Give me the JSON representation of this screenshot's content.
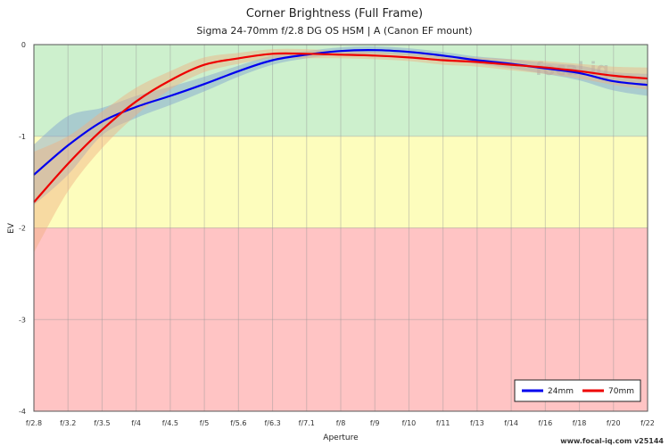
{
  "chart_data": {
    "type": "line",
    "title": "Corner Brightness (Full Frame)",
    "subtitle": "Sigma 24-70mm f/2.8 DG OS HSM | A (Canon EF mount)",
    "xlabel": "Aperture",
    "ylabel": "EV",
    "credit": "www.focal-iq.com  v25144",
    "watermark": "focal iq",
    "categories": [
      "f/2.8",
      "f/3.2",
      "f/3.5",
      "f/4",
      "f/4.5",
      "f/5",
      "f/5.6",
      "f/6.3",
      "f/7.1",
      "f/8",
      "f/9",
      "f/10",
      "f/11",
      "f/13",
      "f/14",
      "f/16",
      "f/18",
      "f/20",
      "f/22"
    ],
    "y_ticks": [
      {
        "value": 0,
        "label": "0"
      },
      {
        "value": -1,
        "label": "-1"
      },
      {
        "value": -2,
        "label": "-2"
      },
      {
        "value": -3,
        "label": "-3"
      },
      {
        "value": -4,
        "label": "-4"
      }
    ],
    "ylim": [
      -4,
      0
    ],
    "grid": true,
    "legend_position": "bottom-right",
    "zones": [
      {
        "from": 0,
        "to": -1,
        "color": "#cdf0cd"
      },
      {
        "from": -1,
        "to": -2,
        "color": "#fdfdbd"
      },
      {
        "from": -2,
        "to": -4,
        "color": "#ffc4c4"
      }
    ],
    "series": [
      {
        "name": "24mm",
        "color": "#0000ee",
        "band_color": "#7f9fd0",
        "x": [
          0,
          1,
          2,
          3,
          4,
          5,
          6,
          7,
          8,
          9,
          10,
          11,
          12,
          13,
          14,
          15,
          16,
          17,
          18
        ],
        "values": [
          -1.42,
          -1.1,
          -0.84,
          -0.68,
          -0.56,
          -0.43,
          -0.29,
          -0.17,
          -0.11,
          -0.07,
          -0.06,
          -0.08,
          -0.12,
          -0.17,
          -0.21,
          -0.26,
          -0.31,
          -0.4,
          -0.44
        ],
        "band": [
          0.33,
          0.32,
          0.15,
          0.12,
          0.1,
          0.08,
          0.06,
          0.05,
          0.04,
          0.04,
          0.04,
          0.04,
          0.04,
          0.04,
          0.05,
          0.06,
          0.08,
          0.1,
          0.12
        ]
      },
      {
        "name": "70mm",
        "color": "#ee0000",
        "band_color": "#f0b080",
        "x": [
          0,
          1,
          2,
          3,
          4,
          5,
          6,
          7,
          8,
          9,
          10,
          11,
          12,
          13,
          14,
          15,
          16,
          17,
          18
        ],
        "values": [
          -1.72,
          -1.3,
          -0.93,
          -0.62,
          -0.39,
          -0.22,
          -0.15,
          -0.1,
          -0.1,
          -0.11,
          -0.12,
          -0.14,
          -0.17,
          -0.19,
          -0.22,
          -0.25,
          -0.29,
          -0.34,
          -0.37
        ],
        "band": [
          0.55,
          0.3,
          0.2,
          0.15,
          0.1,
          0.08,
          0.06,
          0.05,
          0.05,
          0.04,
          0.04,
          0.04,
          0.05,
          0.05,
          0.06,
          0.07,
          0.08,
          0.1,
          0.12
        ]
      }
    ]
  }
}
